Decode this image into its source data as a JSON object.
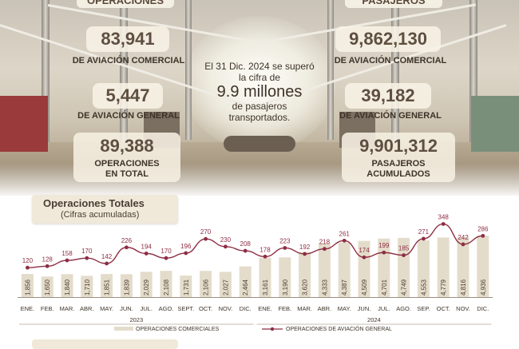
{
  "panel_left": {
    "header": "OPERACIONES",
    "commercial_value": "83,941",
    "commercial_label": "DE AVIACIÓN COMERCIAL",
    "general_value": "5,447",
    "general_label": "DE AVIACIÓN GENERAL",
    "total_value": "89,388",
    "total_label_1": "OPERACIONES",
    "total_label_2": "EN TOTAL"
  },
  "panel_right": {
    "header": "PASAJEROS",
    "commercial_value": "9,862,130",
    "commercial_label": "DE AVIACIÓN COMERCIAL",
    "general_value": "39,182",
    "general_label": "DE AVIACIÓN GENERAL",
    "total_value": "9,901,312",
    "total_label_1": "PASAJEROS",
    "total_label_2": "ACUMULADOS"
  },
  "center_note": {
    "line1": "El 31 Dic. 2024 se superó",
    "line2": "la cifra de",
    "highlight": "9.9 millones",
    "line3": "de pasajeros",
    "line4": "transportados."
  },
  "colors": {
    "bar": "#e4dccb",
    "line": "#8d2d43",
    "text": "#3e3328"
  },
  "chart_data": {
    "type": "bar",
    "title": "Operaciones Totales",
    "subtitle": "(Cifras acumuladas)",
    "categories": [
      "ENE.",
      "FEB.",
      "MAR.",
      "ABR.",
      "MAY.",
      "JUN.",
      "JUL.",
      "AGO.",
      "SEPT.",
      "OCT.",
      "NOV.",
      "DIC.",
      "ENE.",
      "FEB.",
      "MAR.",
      "ABR.",
      "MAY.",
      "JUN.",
      "JUL.",
      "AGO.",
      "SEP.",
      "OCT.",
      "NOV.",
      "DIC."
    ],
    "year_groups": [
      {
        "label": "2023",
        "count": 12
      },
      {
        "label": "2024",
        "count": 12
      }
    ],
    "series": [
      {
        "name": "OPERACIONES COMERCIALES",
        "type": "bar",
        "labels": [
          "1,856",
          "1,650",
          "1,840",
          "1,710",
          "1,851",
          "1,839",
          "2,029",
          "2,108",
          "1,731",
          "2,106",
          "2,027",
          "2,464",
          "3,161",
          "3,190",
          "3,620",
          "4,333",
          "4,387",
          "4,509",
          "4,701",
          "4,749",
          "4,553",
          "4,779",
          "4,816",
          "4,936"
        ],
        "values": [
          1856,
          1650,
          1840,
          1710,
          1851,
          1839,
          2029,
          2108,
          1731,
          2106,
          2027,
          2464,
          3161,
          3190,
          3620,
          4333,
          4387,
          4509,
          4701,
          4749,
          4553,
          4779,
          4816,
          4936
        ]
      },
      {
        "name": "OPERACIONES DE AVIACIÓN GENERAL",
        "type": "line",
        "values": [
          120,
          128,
          158,
          170,
          142,
          226,
          194,
          170,
          196,
          270,
          230,
          208,
          178,
          223,
          192,
          218,
          261,
          174,
          199,
          185,
          271,
          348,
          242,
          286
        ]
      }
    ],
    "legend_position": "bottom"
  }
}
